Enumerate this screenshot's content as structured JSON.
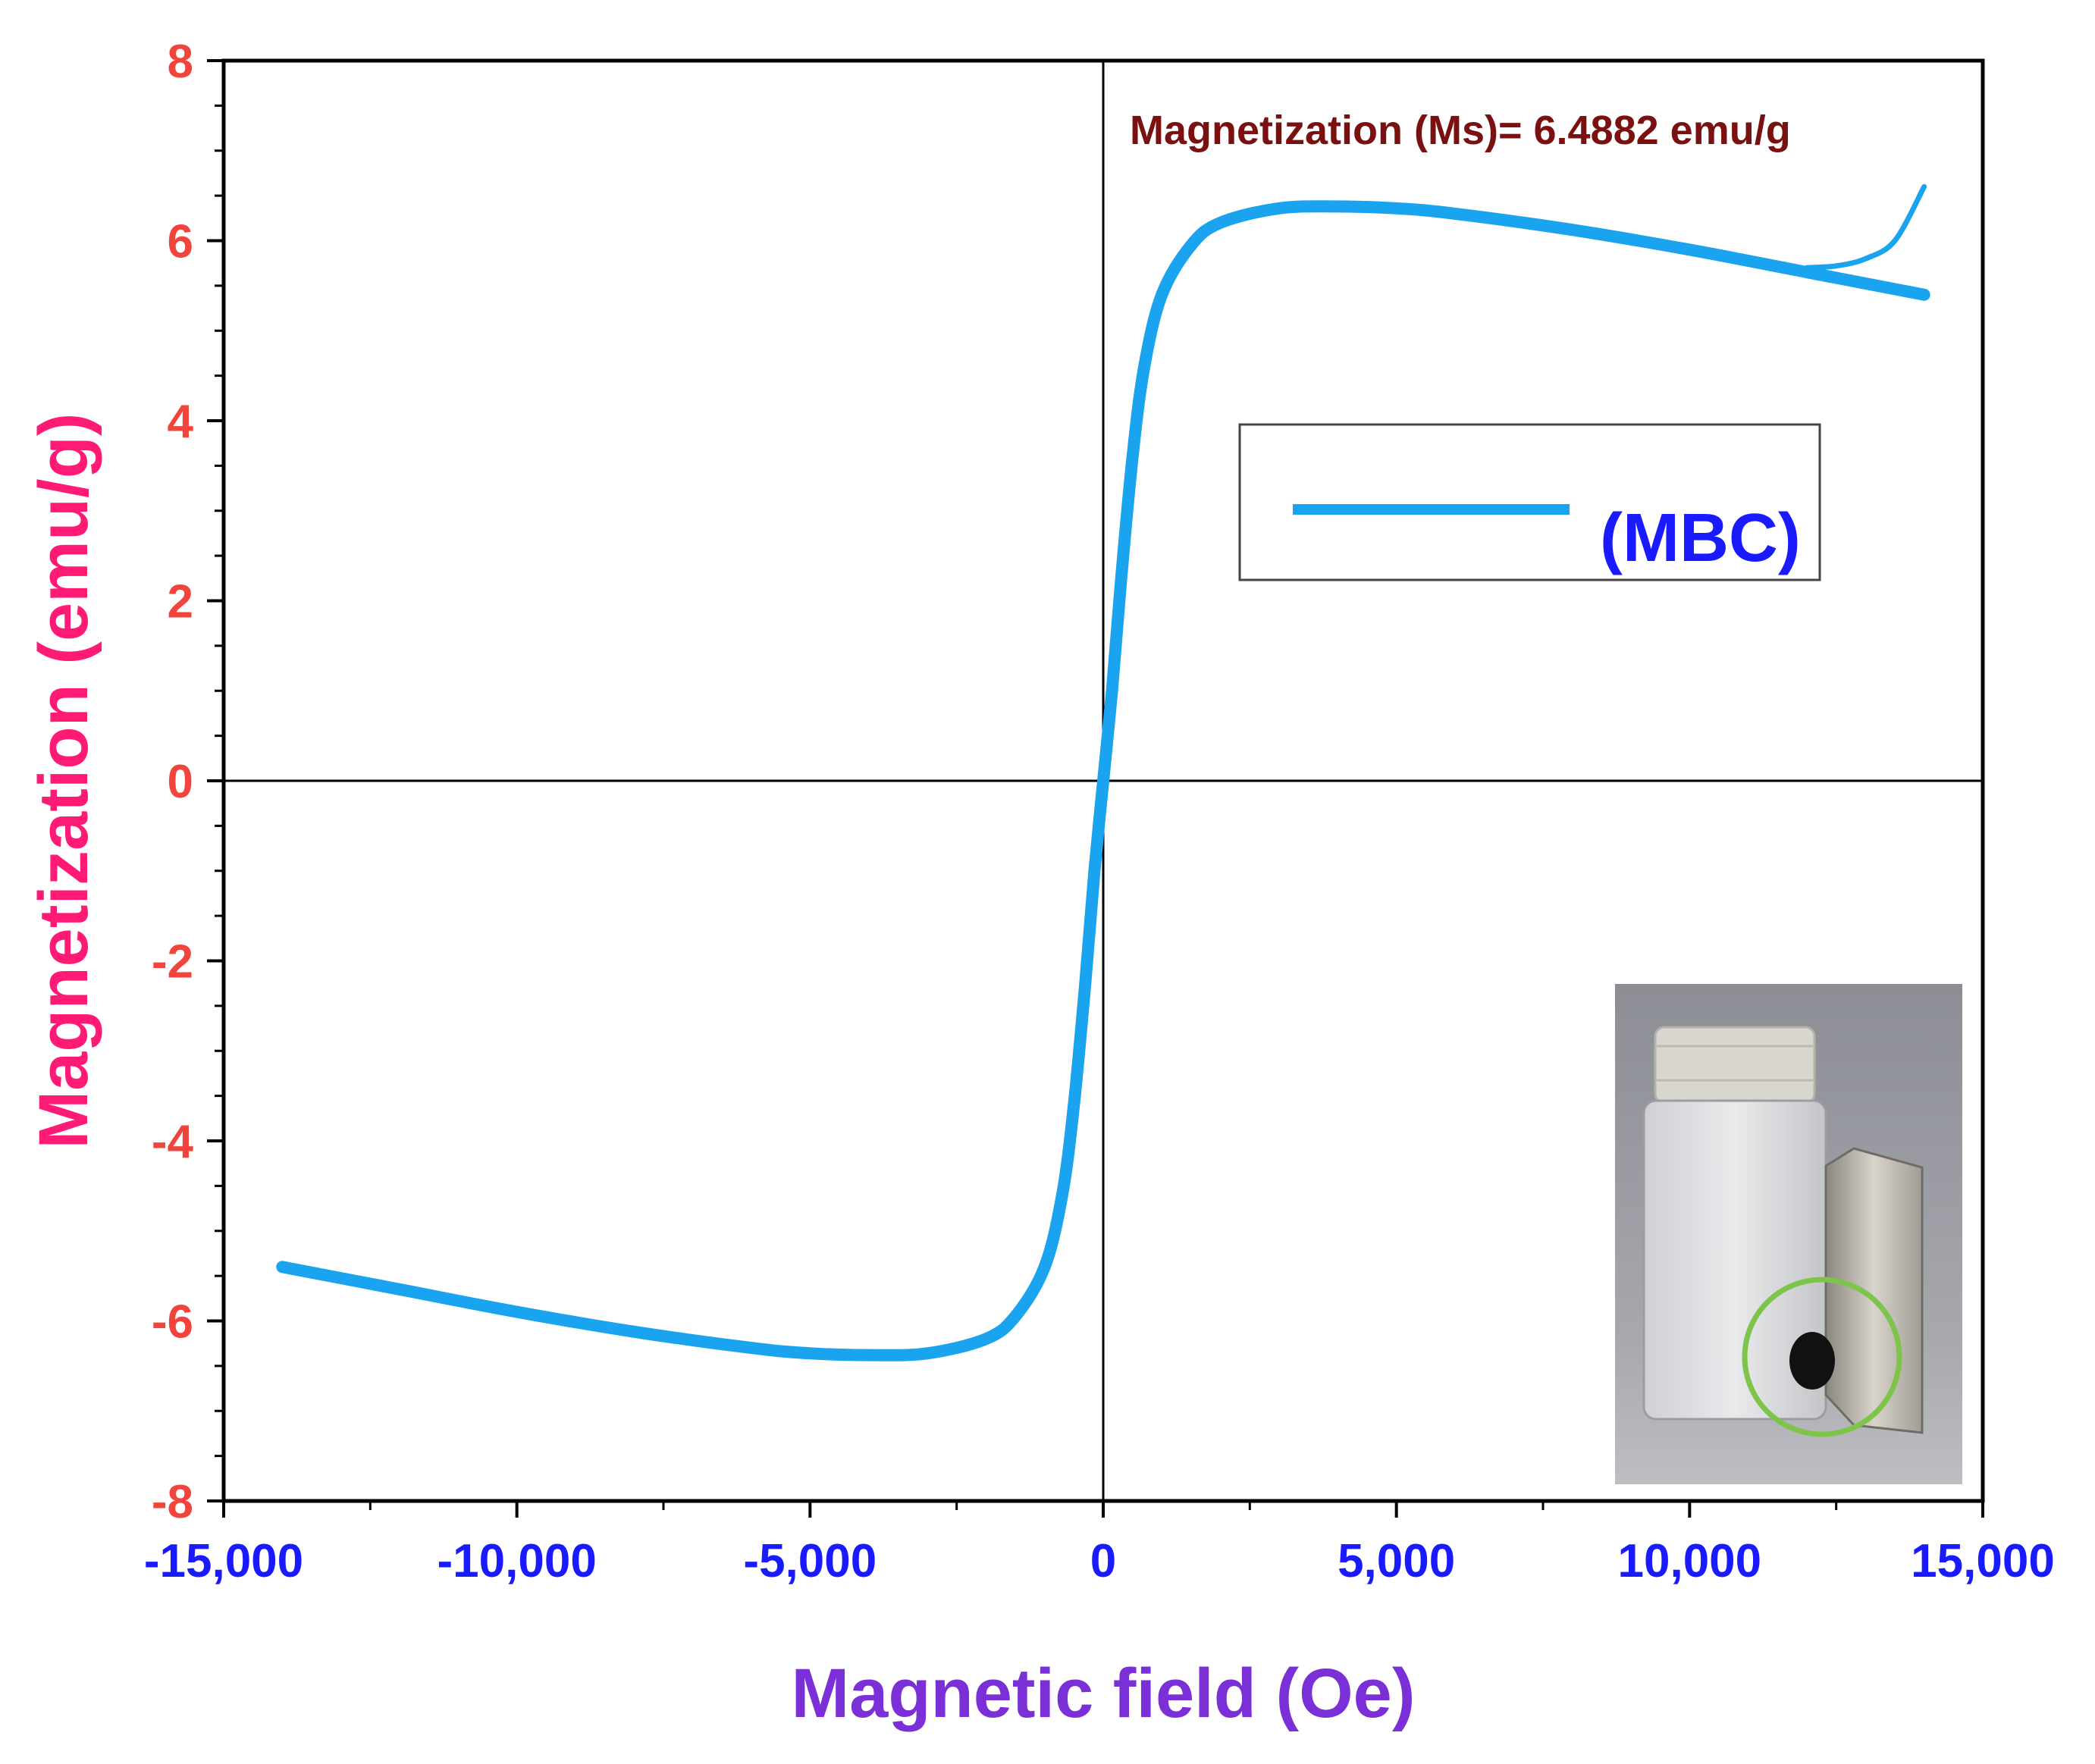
{
  "chart_data": {
    "type": "line",
    "title": "",
    "xlabel": "Magnetic field (Oe)",
    "ylabel": "Magnetization (emu/g)",
    "xlim": [
      -15000,
      15000
    ],
    "ylim": [
      -8,
      8
    ],
    "x_ticks": [
      -15000,
      -10000,
      -5000,
      0,
      5000,
      10000,
      15000
    ],
    "x_tick_labels": [
      "-15,000",
      "-10,000",
      "-5,000",
      "0",
      "5,000",
      "10,000",
      "15,000"
    ],
    "y_ticks": [
      -8,
      -6,
      -4,
      -2,
      0,
      2,
      4,
      6,
      8
    ],
    "y_tick_labels": [
      "-8",
      "-6",
      "-4",
      "-2",
      "0",
      "2",
      "4",
      "6",
      "8"
    ],
    "grid": false,
    "zero_lines": true,
    "legend_position": "upper-right",
    "annotation": "Magnetization (Ms)= 6.4882 emu/g",
    "colors": {
      "series": "#1aa3ef",
      "x_tick_labels": "#1a1aff",
      "y_tick_labels": "#f0443c",
      "xlabel": "#7b2fd6",
      "ylabel": "#ff1a75",
      "annotation": "#7a1010",
      "legend_text": "#1a1aff",
      "inset_ring": "#7cc44a"
    },
    "series": [
      {
        "name": "(MBC)",
        "branches": [
          {
            "x": [
              -14000,
              -12000,
              -10000,
              -8000,
              -6000,
              -5000,
              -4000,
              -3000,
              -2000,
              -1500,
              -1000,
              -700,
              -500,
              -300,
              -150,
              0,
              150,
              300,
              500,
              700,
              1000,
              1500,
              2000,
              3000,
              4000,
              5000,
              6000,
              8000,
              10000,
              12000,
              14000
            ],
            "y": [
              -5.4,
              -5.65,
              -5.9,
              -6.12,
              -6.3,
              -6.36,
              -6.38,
              -6.36,
              -6.2,
              -5.95,
              -5.4,
              -4.6,
              -3.6,
              -2.2,
              -1.0,
              0.0,
              1.0,
              2.2,
              3.6,
              4.6,
              5.4,
              5.95,
              6.2,
              6.36,
              6.38,
              6.36,
              6.3,
              6.12,
              5.9,
              5.65,
              5.4
            ]
          },
          {
            "x": [
              12000,
              12500,
              13000,
              13500,
              14000
            ],
            "y": [
              5.7,
              5.72,
              5.8,
              6.0,
              6.6
            ]
          }
        ]
      }
    ]
  },
  "inset": {
    "description_icon": "vial-with-magnet-photo-icon"
  }
}
